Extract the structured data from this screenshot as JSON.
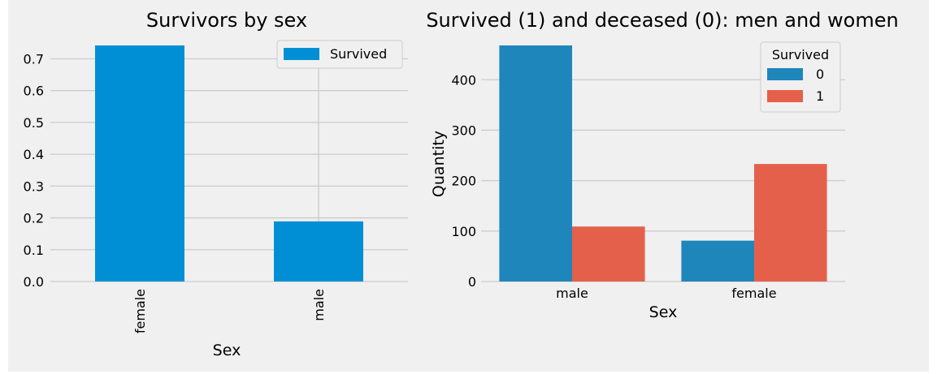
{
  "chart_data": [
    {
      "type": "bar",
      "title": "Survivors by sex",
      "xlabel": "Sex",
      "ylabel": "",
      "categories": [
        "female",
        "male"
      ],
      "series": [
        {
          "name": "Survived",
          "values": [
            0.742,
            0.189
          ]
        }
      ],
      "ylim": [
        0,
        0.742
      ],
      "yticks": [
        0.0,
        0.1,
        0.2,
        0.3,
        0.4,
        0.5,
        0.6,
        0.7
      ],
      "ytick_labels": [
        "0.0",
        "0.1",
        "0.2",
        "0.3",
        "0.4",
        "0.5",
        "0.6",
        "0.7"
      ],
      "xtick_rotation": "vertical",
      "grid": true,
      "legend": {
        "placement": "upper-right",
        "entries": [
          "Survived"
        ]
      },
      "colors": [
        "#008fd5"
      ]
    },
    {
      "type": "bar",
      "title": "Survived (1) and deceased (0): men and women",
      "xlabel": "Sex",
      "ylabel": "Quantity",
      "categories": [
        "male",
        "female"
      ],
      "series": [
        {
          "name": "0",
          "values": [
            468,
            81
          ]
        },
        {
          "name": "1",
          "values": [
            109,
            233
          ]
        }
      ],
      "ylim": [
        0,
        468
      ],
      "yticks": [
        0,
        100,
        200,
        300,
        400
      ],
      "ytick_labels": [
        "0",
        "100",
        "200",
        "300",
        "400"
      ],
      "grid": true,
      "legend": {
        "title": "Survived",
        "placement": "upper-right",
        "entries": [
          "0",
          "1"
        ]
      },
      "colors": [
        "#1f86bb",
        "#e5604a"
      ]
    }
  ]
}
